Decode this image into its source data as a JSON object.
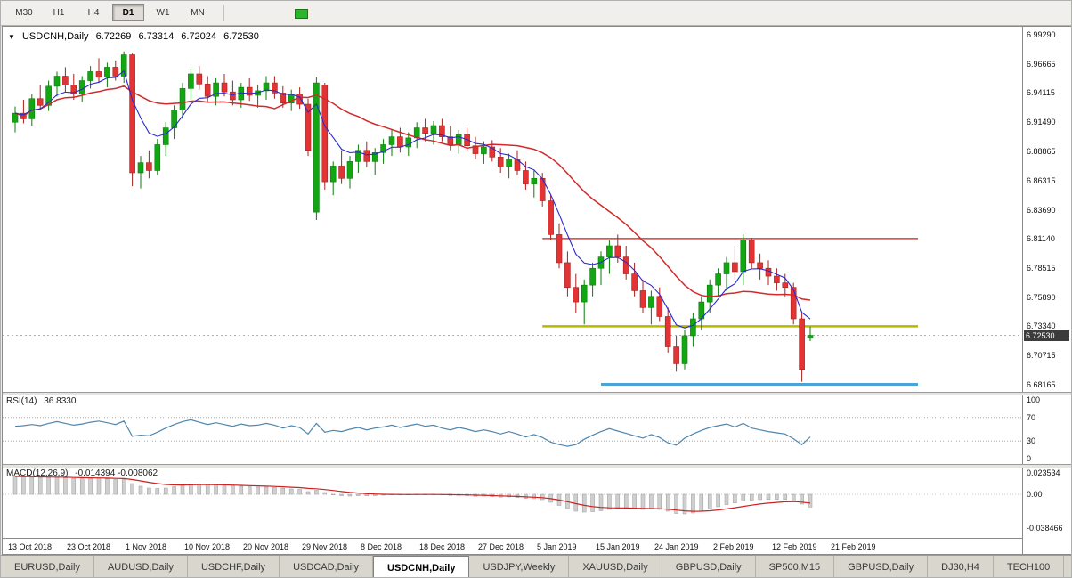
{
  "toolbar": {
    "timeframes": [
      {
        "label": "M30",
        "active": false
      },
      {
        "label": "H1",
        "active": false
      },
      {
        "label": "H4",
        "active": false
      },
      {
        "label": "D1",
        "active": true
      },
      {
        "label": "W1",
        "active": false
      },
      {
        "label": "MN",
        "active": false
      }
    ]
  },
  "chart": {
    "dropdown_icon": "▼",
    "symbol_period": "USDCNH,Daily",
    "ohlc_display": {
      "open": "6.72269",
      "high": "6.73314",
      "low": "6.72024",
      "close": "6.72530"
    },
    "price_scale_labels": [
      "6.99290",
      "6.96665",
      "6.94115",
      "6.91490",
      "6.88865",
      "6.86315",
      "6.83690",
      "6.81140",
      "6.78515",
      "6.75890",
      "6.73340",
      "6.70715",
      "6.68165"
    ],
    "current_price_badge": "6.72530",
    "date_labels": [
      "13 Oct 2018",
      "23 Oct 2018",
      "1 Nov 2018",
      "10 Nov 2018",
      "20 Nov 2018",
      "29 Nov 2018",
      "8 Dec 2018",
      "18 Dec 2018",
      "27 Dec 2018",
      "5 Jan 2019",
      "15 Jan 2019",
      "24 Jan 2019",
      "2 Feb 2019",
      "12 Feb 2019",
      "21 Feb 2019"
    ]
  },
  "chart_data": {
    "type": "candlestick",
    "title": "USDCNH,Daily",
    "price_axis_range": [
      6.675,
      7.0
    ],
    "ohlc": [
      [
        6.915,
        6.929,
        6.906,
        6.923
      ],
      [
        6.923,
        6.935,
        6.914,
        6.918
      ],
      [
        6.918,
        6.94,
        6.912,
        6.936
      ],
      [
        6.936,
        6.948,
        6.926,
        6.93
      ],
      [
        6.93,
        6.952,
        6.925,
        6.947
      ],
      [
        6.947,
        6.96,
        6.938,
        6.956
      ],
      [
        6.956,
        6.964,
        6.942,
        6.948
      ],
      [
        6.948,
        6.958,
        6.935,
        6.94
      ],
      [
        6.94,
        6.956,
        6.933,
        6.952
      ],
      [
        6.952,
        6.965,
        6.945,
        6.96
      ],
      [
        6.96,
        6.972,
        6.95,
        6.955
      ],
      [
        6.955,
        6.968,
        6.946,
        6.964
      ],
      [
        6.964,
        6.97,
        6.952,
        6.956
      ],
      [
        6.956,
        6.978,
        6.95,
        6.975
      ],
      [
        6.975,
        6.976,
        6.858,
        6.87
      ],
      [
        6.87,
        6.885,
        6.856,
        6.879
      ],
      [
        6.879,
        6.89,
        6.865,
        6.872
      ],
      [
        6.872,
        6.9,
        6.868,
        6.895
      ],
      [
        6.895,
        6.915,
        6.885,
        6.91
      ],
      [
        6.91,
        6.93,
        6.9,
        6.926
      ],
      [
        6.926,
        6.95,
        6.918,
        6.945
      ],
      [
        6.945,
        6.962,
        6.935,
        6.958
      ],
      [
        6.958,
        6.965,
        6.944,
        6.949
      ],
      [
        6.949,
        6.956,
        6.933,
        6.938
      ],
      [
        6.938,
        6.954,
        6.93,
        6.95
      ],
      [
        6.95,
        6.958,
        6.938,
        6.942
      ],
      [
        6.942,
        6.952,
        6.93,
        6.935
      ],
      [
        6.935,
        6.95,
        6.928,
        6.946
      ],
      [
        6.946,
        6.954,
        6.934,
        6.939
      ],
      [
        6.939,
        6.948,
        6.928,
        6.943
      ],
      [
        6.943,
        6.956,
        6.935,
        6.95
      ],
      [
        6.95,
        6.956,
        6.936,
        6.941
      ],
      [
        6.941,
        6.947,
        6.928,
        6.932
      ],
      [
        6.932,
        6.944,
        6.925,
        6.94
      ],
      [
        6.94,
        6.946,
        6.927,
        6.931
      ],
      [
        6.931,
        6.936,
        6.885,
        6.89
      ],
      [
        6.835,
        6.955,
        6.828,
        6.95
      ],
      [
        6.948,
        6.95,
        6.855,
        6.862
      ],
      [
        6.862,
        6.88,
        6.85,
        6.876
      ],
      [
        6.876,
        6.89,
        6.86,
        6.865
      ],
      [
        6.865,
        6.885,
        6.856,
        6.88
      ],
      [
        6.88,
        6.895,
        6.87,
        6.89
      ],
      [
        6.89,
        6.898,
        6.875,
        6.88
      ],
      [
        6.88,
        6.892,
        6.868,
        6.888
      ],
      [
        6.888,
        6.9,
        6.878,
        6.895
      ],
      [
        6.895,
        6.908,
        6.885,
        6.902
      ],
      [
        6.902,
        6.91,
        6.888,
        6.893
      ],
      [
        6.893,
        6.906,
        6.885,
        6.901
      ],
      [
        6.901,
        6.915,
        6.892,
        6.91
      ],
      [
        6.91,
        6.918,
        6.898,
        6.905
      ],
      [
        6.905,
        6.916,
        6.895,
        6.912
      ],
      [
        6.912,
        6.918,
        6.898,
        6.902
      ],
      [
        6.902,
        6.912,
        6.89,
        6.895
      ],
      [
        6.895,
        6.908,
        6.887,
        6.904
      ],
      [
        6.904,
        6.91,
        6.89,
        6.894
      ],
      [
        6.894,
        6.902,
        6.882,
        6.887
      ],
      [
        6.887,
        6.898,
        6.878,
        6.893
      ],
      [
        6.893,
        6.899,
        6.88,
        6.884
      ],
      [
        6.884,
        6.892,
        6.87,
        6.875
      ],
      [
        6.875,
        6.887,
        6.865,
        6.882
      ],
      [
        6.882,
        6.89,
        6.868,
        6.872
      ],
      [
        6.872,
        6.88,
        6.855,
        6.86
      ],
      [
        6.86,
        6.872,
        6.848,
        6.865
      ],
      [
        6.865,
        6.87,
        6.84,
        6.845
      ],
      [
        6.845,
        6.85,
        6.81,
        6.815
      ],
      [
        6.815,
        6.825,
        6.785,
        6.79
      ],
      [
        6.79,
        6.8,
        6.76,
        6.768
      ],
      [
        6.768,
        6.78,
        6.745,
        6.755
      ],
      [
        6.755,
        6.775,
        6.735,
        6.77
      ],
      [
        6.77,
        6.79,
        6.76,
        6.785
      ],
      [
        6.785,
        6.8,
        6.77,
        6.795
      ],
      [
        6.795,
        6.81,
        6.78,
        6.805
      ],
      [
        6.805,
        6.815,
        6.79,
        6.795
      ],
      [
        6.795,
        6.805,
        6.775,
        6.78
      ],
      [
        6.78,
        6.79,
        6.76,
        6.765
      ],
      [
        6.765,
        6.775,
        6.745,
        6.75
      ],
      [
        6.75,
        6.765,
        6.735,
        6.76
      ],
      [
        6.76,
        6.768,
        6.738,
        6.742
      ],
      [
        6.742,
        6.75,
        6.71,
        6.715
      ],
      [
        6.715,
        6.725,
        6.693,
        6.7
      ],
      [
        6.7,
        6.73,
        6.695,
        6.725
      ],
      [
        6.725,
        6.745,
        6.715,
        6.74
      ],
      [
        6.74,
        6.76,
        6.73,
        6.755
      ],
      [
        6.755,
        6.775,
        6.745,
        6.77
      ],
      [
        6.77,
        6.785,
        6.76,
        6.78
      ],
      [
        6.78,
        6.795,
        6.765,
        6.79
      ],
      [
        6.79,
        6.805,
        6.775,
        6.782
      ],
      [
        6.782,
        6.815,
        6.77,
        6.81
      ],
      [
        6.81,
        6.812,
        6.785,
        6.79
      ],
      [
        6.79,
        6.798,
        6.775,
        6.785
      ],
      [
        6.785,
        6.792,
        6.77,
        6.778
      ],
      [
        6.778,
        6.785,
        6.765,
        6.772
      ],
      [
        6.772,
        6.78,
        6.76,
        6.768
      ],
      [
        6.768,
        6.772,
        6.735,
        6.74
      ],
      [
        6.74,
        6.745,
        6.684,
        6.695
      ],
      [
        6.7227,
        6.7331,
        6.7202,
        6.7253
      ]
    ],
    "hlines": [
      {
        "price": 6.8114,
        "color": "#e03a3a",
        "width": 1.5,
        "start_index": 63
      },
      {
        "price": 6.7334,
        "color": "#b6b900",
        "width": 2.5,
        "start_index": 63
      },
      {
        "price": 6.6817,
        "color": "#4aa4d8",
        "width": 3,
        "start_index": 70
      }
    ],
    "indicators": {
      "rsi": {
        "name": "RSI(14)",
        "current": "36.8330",
        "levels": [
          "100",
          "70",
          "30",
          "0"
        ],
        "overbought": 70,
        "oversold": 30,
        "values": [
          55,
          56,
          58,
          56,
          60,
          63,
          60,
          57,
          59,
          62,
          64,
          61,
          58,
          64,
          38,
          40,
          39,
          45,
          52,
          58,
          63,
          66,
          62,
          58,
          61,
          58,
          55,
          59,
          56,
          57,
          60,
          57,
          52,
          56,
          53,
          42,
          60,
          45,
          48,
          46,
          50,
          53,
          49,
          52,
          54,
          57,
          53,
          56,
          59,
          55,
          57,
          52,
          49,
          53,
          50,
          46,
          49,
          46,
          42,
          46,
          42,
          37,
          41,
          36,
          28,
          24,
          21,
          24,
          33,
          40,
          46,
          51,
          47,
          43,
          39,
          35,
          41,
          36,
          27,
          23,
          35,
          42,
          48,
          53,
          56,
          59,
          54,
          60,
          52,
          49,
          46,
          44,
          42,
          34,
          24,
          37
        ]
      },
      "macd": {
        "name": "MACD(12,26,9)",
        "current": "-0.014394 -0.008062",
        "scale_labels": [
          "0.023534",
          "0.00",
          "-0.038466"
        ],
        "histogram": [
          0.02,
          0.0195,
          0.019,
          0.0185,
          0.0185,
          0.019,
          0.0185,
          0.0178,
          0.0175,
          0.0178,
          0.018,
          0.0172,
          0.0165,
          0.017,
          0.012,
          0.009,
          0.007,
          0.0065,
          0.007,
          0.0085,
          0.01,
          0.0112,
          0.0115,
          0.0108,
          0.0105,
          0.01,
          0.0092,
          0.009,
          0.0085,
          0.008,
          0.008,
          0.0078,
          0.0068,
          0.006,
          0.0055,
          0.003,
          0.0045,
          0.002,
          0.0,
          -0.0015,
          -0.002,
          -0.0015,
          -0.0018,
          -0.0015,
          -0.001,
          -0.0005,
          -0.0008,
          -0.0005,
          0.0,
          -0.0003,
          0.0,
          -0.0005,
          -0.0012,
          -0.001,
          -0.0015,
          -0.0022,
          -0.002,
          -0.0025,
          -0.0032,
          -0.003,
          -0.0038,
          -0.0048,
          -0.005,
          -0.006,
          -0.009,
          -0.0125,
          -0.016,
          -0.019,
          -0.02,
          -0.0195,
          -0.0185,
          -0.017,
          -0.016,
          -0.0158,
          -0.0162,
          -0.017,
          -0.0165,
          -0.017,
          -0.019,
          -0.0215,
          -0.022,
          -0.021,
          -0.019,
          -0.0165,
          -0.014,
          -0.0115,
          -0.0098,
          -0.0075,
          -0.0065,
          -0.006,
          -0.0058,
          -0.0057,
          -0.0058,
          -0.0075,
          -0.011,
          -0.0144
        ]
      }
    },
    "colors": {
      "up": "#12a712",
      "up_stroke": "#0a7d0a",
      "down": "#e23434",
      "down_stroke": "#a81f1f",
      "ma_fast": "#2a2ad0",
      "ma_slow": "#d22a2a",
      "rsi_line": "#4f86ad",
      "macd_hist": "#cfcfcf",
      "macd_hist_stroke": "#9a9a9a",
      "macd_signal": "#cc2222",
      "last_price_dash": "#b0b0b0"
    }
  },
  "tabs": [
    {
      "label": "EURUSD,Daily",
      "active": false
    },
    {
      "label": "AUDUSD,Daily",
      "active": false
    },
    {
      "label": "USDCHF,Daily",
      "active": false
    },
    {
      "label": "USDCAD,Daily",
      "active": false
    },
    {
      "label": "USDCNH,Daily",
      "active": true
    },
    {
      "label": "USDJPY,Weekly",
      "active": false
    },
    {
      "label": "XAUUSD,Daily",
      "active": false
    },
    {
      "label": "GBPUSD,Daily",
      "active": false
    },
    {
      "label": "SP500,M15",
      "active": false
    },
    {
      "label": "GBPUSD,Daily",
      "active": false
    },
    {
      "label": "DJ30,H4",
      "active": false
    },
    {
      "label": "TECH100",
      "active": false
    }
  ]
}
